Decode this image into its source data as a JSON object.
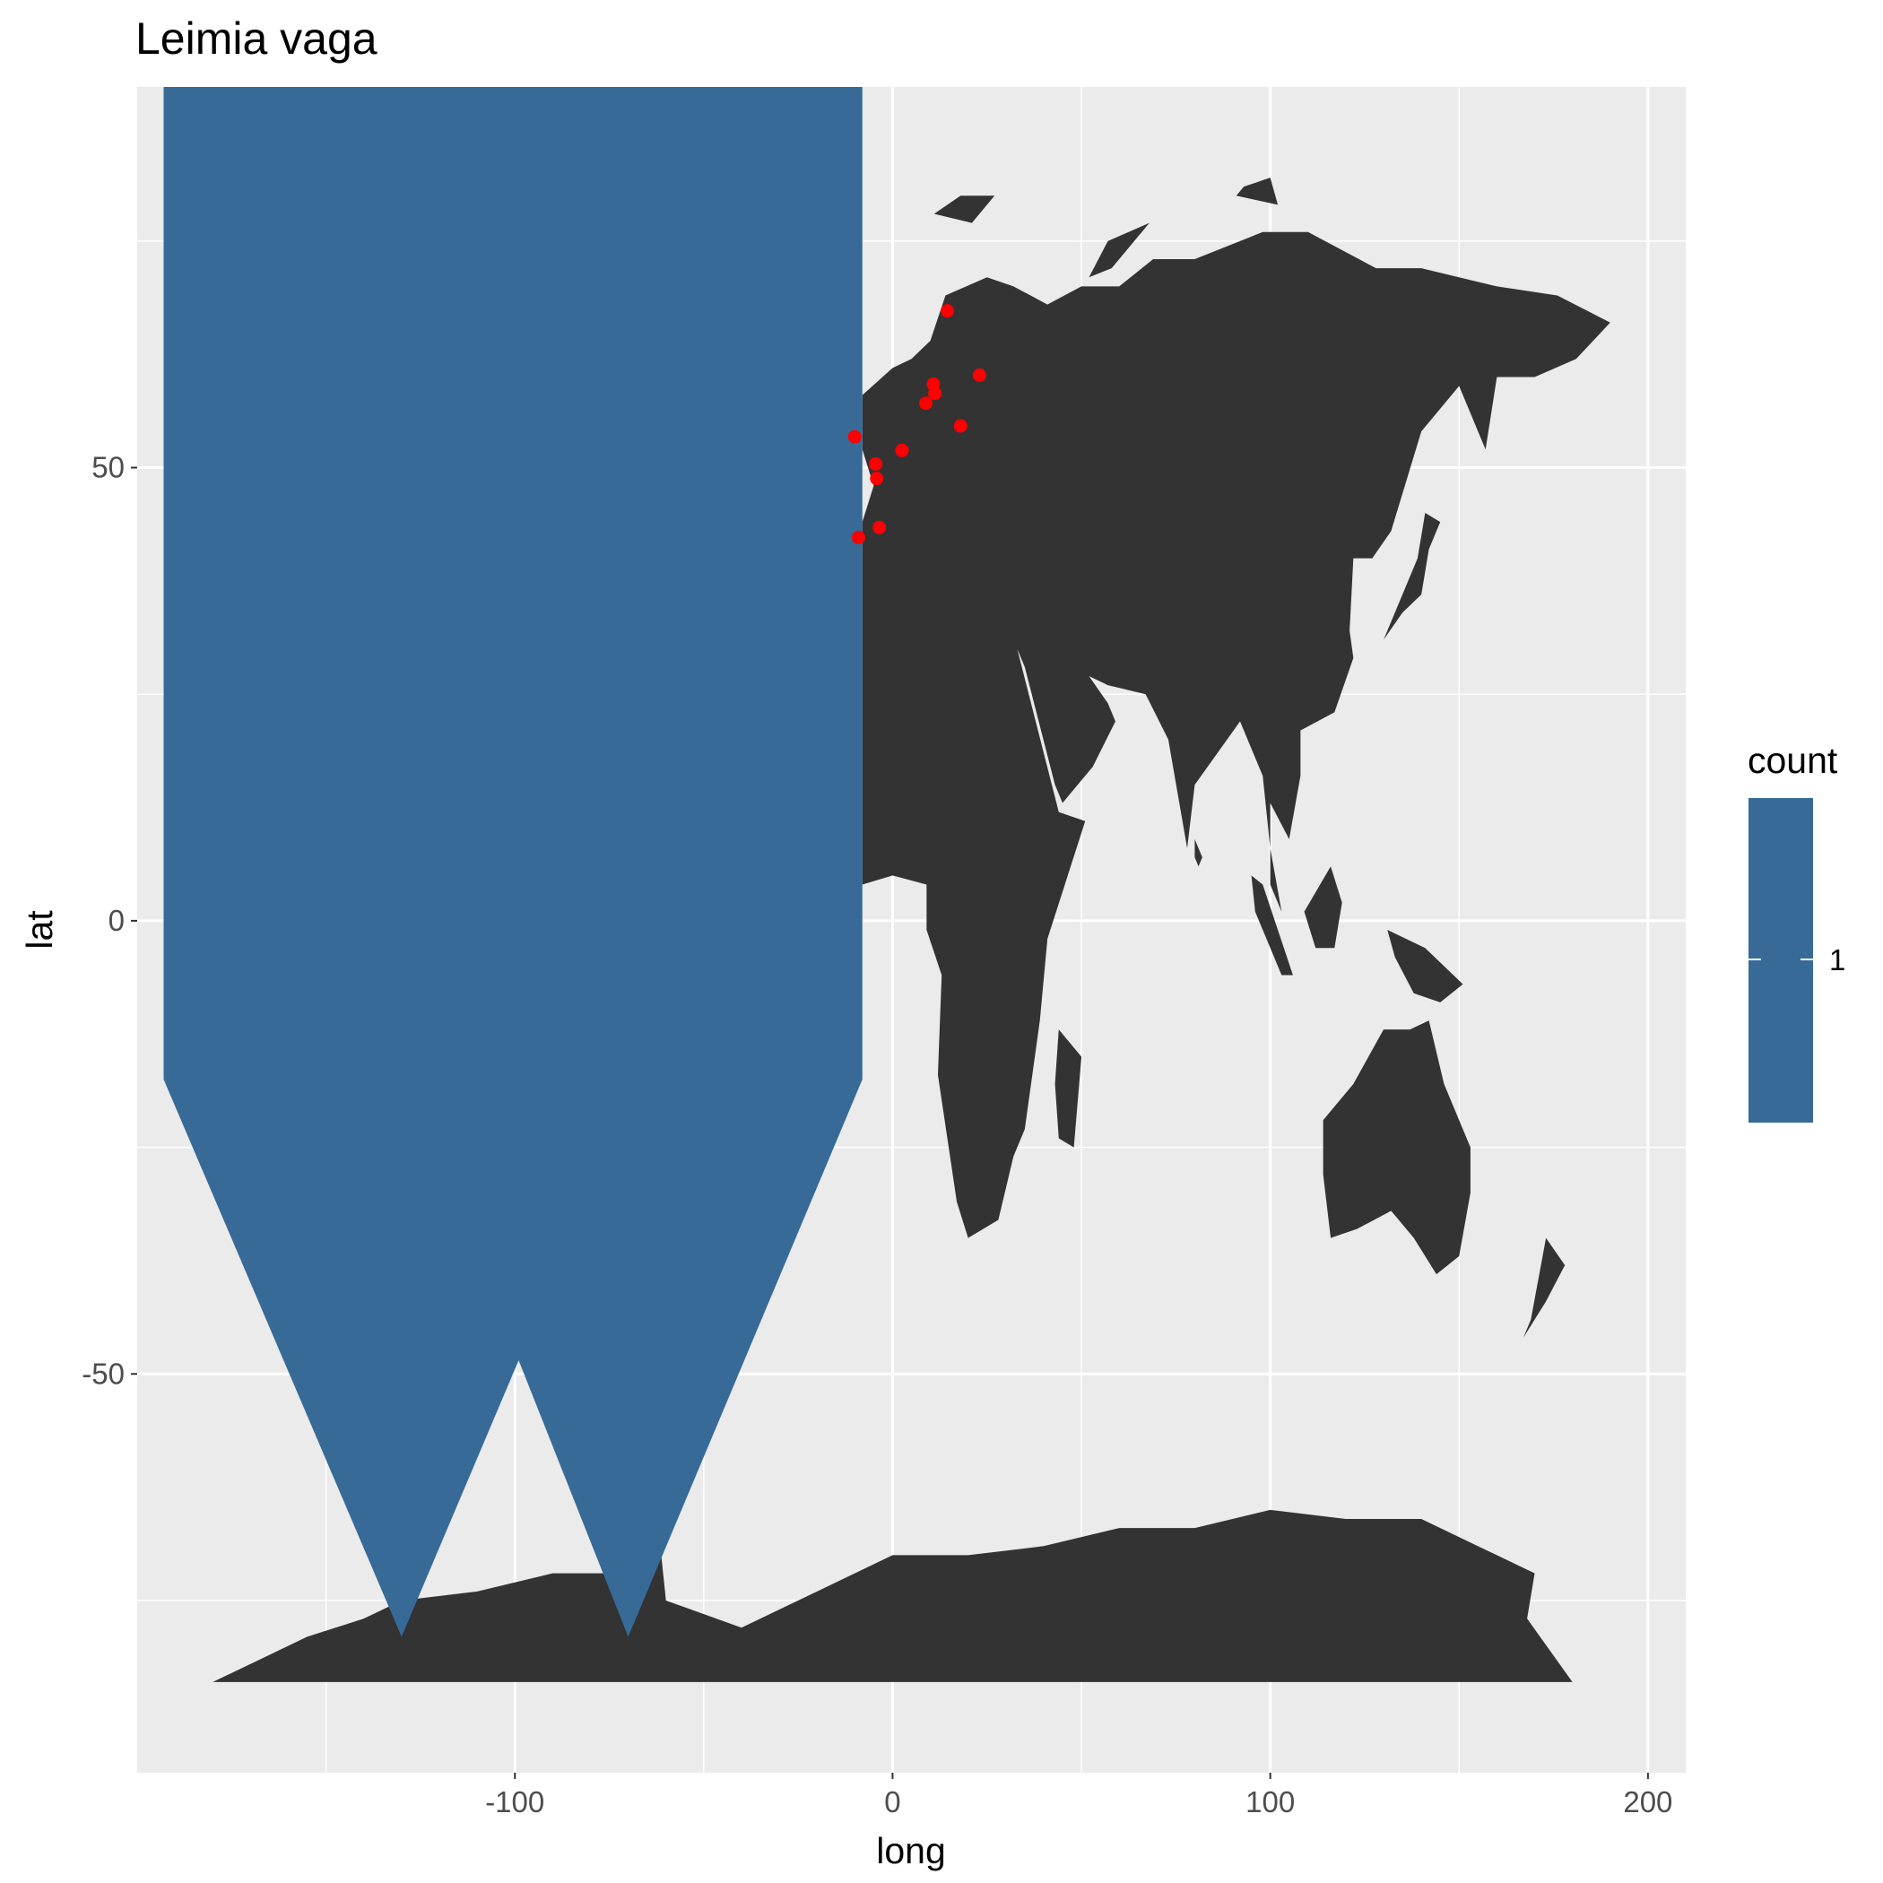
{
  "chart_data": {
    "type": "scatter",
    "title": "Leimia vaga",
    "xlabel": "long",
    "ylabel": "lat",
    "xlim": [
      -200,
      210
    ],
    "ylim": [
      -94,
      92
    ],
    "x_ticks": [
      -100,
      0,
      100,
      200
    ],
    "y_ticks": [
      -50,
      0,
      50
    ],
    "grid": true,
    "colors": {
      "panel": "#ebebeb",
      "grid": "#ffffff",
      "land": "#333333",
      "fill": "#376a97",
      "points": "#ff0000"
    },
    "fill_polygon": {
      "lon": [
        -193,
        -8,
        -8,
        -70,
        -99,
        -130,
        -193
      ],
      "lat": [
        92,
        92,
        -17.5,
        -79,
        -48.5,
        -79,
        -17.5
      ]
    },
    "points": [
      {
        "long": 14.5,
        "lat": 67.3
      },
      {
        "long": 23.0,
        "lat": 60.2
      },
      {
        "long": 10.8,
        "lat": 59.2
      },
      {
        "long": 11.2,
        "lat": 58.2
      },
      {
        "long": 8.8,
        "lat": 57.1
      },
      {
        "long": 18.0,
        "lat": 54.6
      },
      {
        "long": 2.5,
        "lat": 51.9
      },
      {
        "long": -10.0,
        "lat": 53.4
      },
      {
        "long": -4.5,
        "lat": 50.4
      },
      {
        "long": -4.2,
        "lat": 48.8
      },
      {
        "long": -3.5,
        "lat": 43.4
      },
      {
        "long": -9.0,
        "lat": 42.3
      }
    ],
    "legend": {
      "title": "count",
      "label": "1",
      "position": "right"
    }
  }
}
